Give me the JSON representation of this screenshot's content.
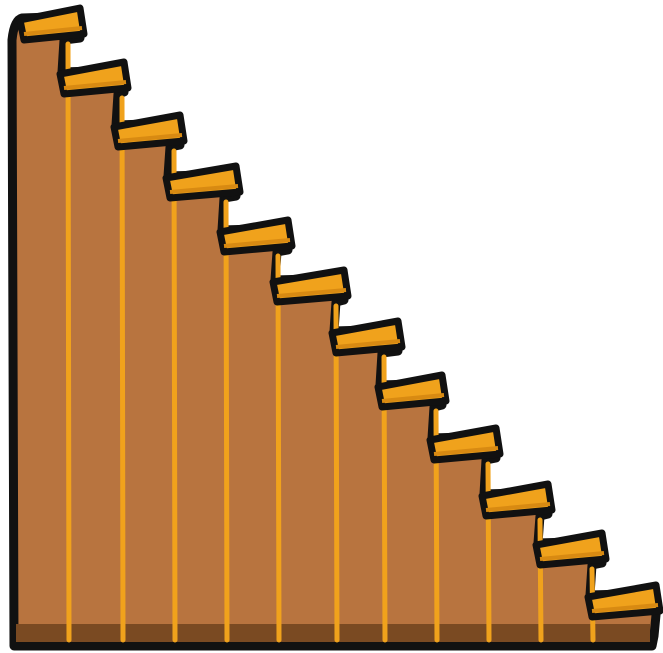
{
  "scene": {
    "object": "staircase",
    "step_count": 12,
    "colors": {
      "background": "#ffffff",
      "outline": "#111111",
      "wood": "#b8743f",
      "wood_shadow": "#7a4a22",
      "plank_line": "#f0a21c",
      "tread_top": "#f0a21c",
      "tread_front": "#d88a12"
    }
  }
}
